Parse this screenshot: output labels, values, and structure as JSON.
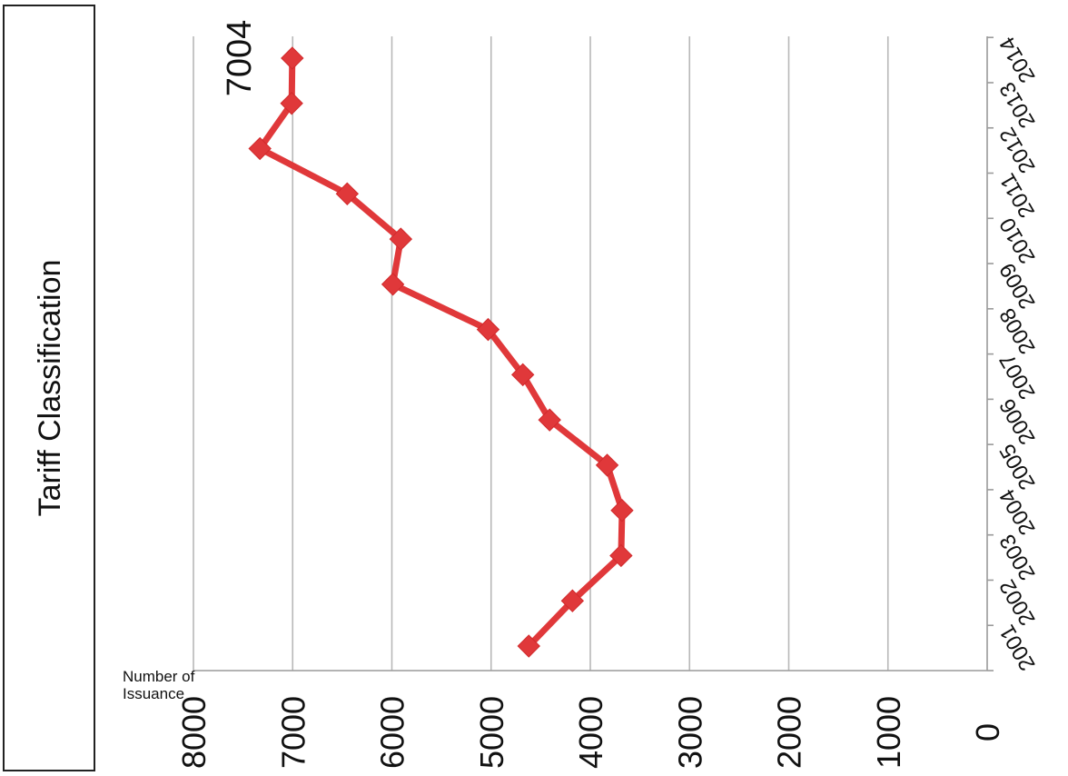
{
  "chart_data": {
    "type": "line",
    "orientation": "rotated-90",
    "title": "Tariff Classification",
    "xlabel": "",
    "ylabel": "Number of Issuance",
    "ylabel_lines": [
      "Number of",
      "Issuance"
    ],
    "categories": [
      "2001",
      "2002",
      "2003",
      "2004",
      "2005",
      "2006",
      "2007",
      "2008",
      "2009",
      "2010",
      "2011",
      "2012",
      "2013",
      "2014"
    ],
    "series": [
      {
        "name": "",
        "color": "#e0383a",
        "marker": "diamond",
        "values": [
          4620,
          4180,
          3690,
          3680,
          3830,
          4410,
          4680,
          5030,
          5990,
          5910,
          6450,
          7330,
          7010,
          7004
        ]
      }
    ],
    "ylim": [
      0,
      8000
    ],
    "yticks": [
      8000,
      7000,
      6000,
      5000,
      4000,
      3000,
      2000,
      1000,
      0
    ],
    "grid": true,
    "legend": "none",
    "annotations": [
      {
        "category": "2014",
        "text": "7004"
      }
    ]
  }
}
